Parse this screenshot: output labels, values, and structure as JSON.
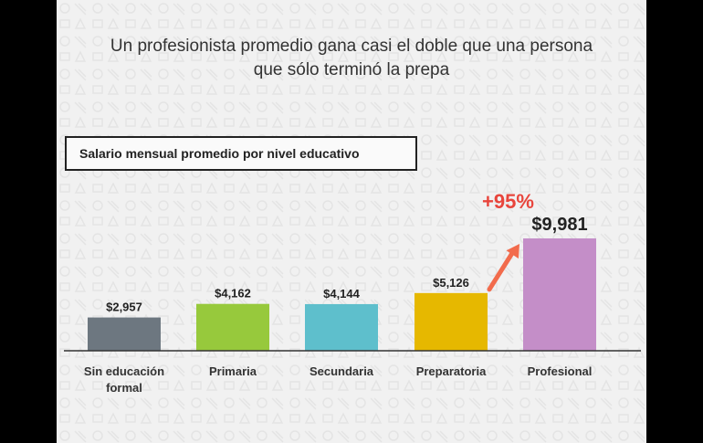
{
  "headline": {
    "line1": "Un profesionista promedio gana casi el doble que una persona",
    "line2": "que sólo terminó la prepa"
  },
  "colors": {
    "background": "#f1f1f1",
    "arrow": "#f26b4c",
    "annotation": "#e8453c",
    "baseline": "#333333"
  },
  "chart_data": {
    "type": "bar",
    "title": "Salario mensual promedio por nivel educativo",
    "categories": [
      "Sin educación formal",
      "Primaria",
      "Secundaria",
      "Preparatoria",
      "Profesional"
    ],
    "category_lines": [
      [
        "Sin educación",
        "formal"
      ],
      [
        "Primaria"
      ],
      [
        "Secundaria"
      ],
      [
        "Preparatoria"
      ],
      [
        "Profesional"
      ]
    ],
    "values": [
      2957,
      4162,
      4144,
      5126,
      9981
    ],
    "value_labels": [
      "$2,957",
      "$4,162",
      "$4,144",
      "$5,126",
      "$9,981"
    ],
    "bar_colors": [
      "#6d7780",
      "#97c93c",
      "#5ebfcc",
      "#e6b800",
      "#c48ec8"
    ],
    "annotation": {
      "text": "+95%",
      "from_category": "Preparatoria",
      "to_category": "Profesional"
    },
    "grid": false,
    "legend": "none"
  }
}
